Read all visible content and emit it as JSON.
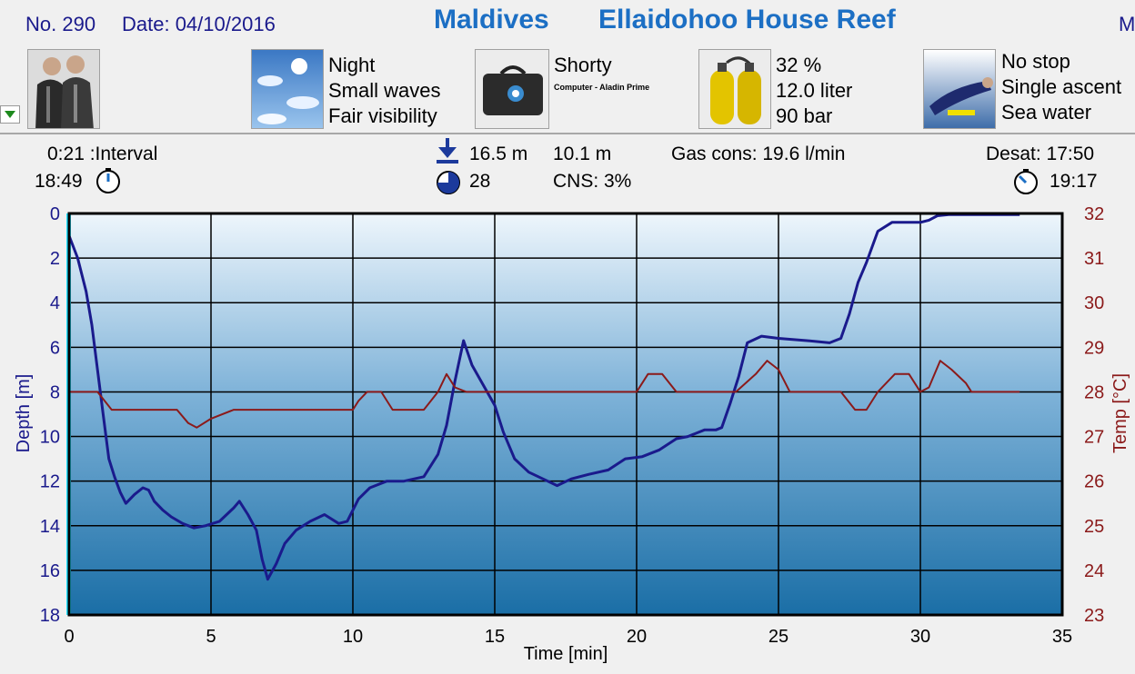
{
  "header": {
    "dive_no": "No. 290",
    "date": "Date: 04/10/2016",
    "country": "Maldives",
    "site": "Ellaidohoo House Reef",
    "edge_text": "M"
  },
  "info": {
    "conditions": [
      "Night",
      "Small waves",
      "Fair visibility"
    ],
    "suit": "Shorty",
    "computer": "Computer - Aladin Prime",
    "tank": [
      "32 %",
      "12.0 liter",
      "90 bar"
    ],
    "dive_type": [
      "No stop",
      "Single ascent",
      "Sea water"
    ]
  },
  "stats": {
    "interval": "0:21  :Interval",
    "start_time": "18:49",
    "max_depth": "16.5 m",
    "avg_depth": "10.1 m",
    "duration": "28",
    "cns": "CNS:  3%",
    "gas_cons": "Gas cons: 19.6 l/min",
    "desat": "Desat: 17:50",
    "end_time": "19:17"
  },
  "icons": [
    "avatar-icon",
    "weather-icon",
    "bag-icon",
    "tank-icon",
    "diver-icon",
    "dropdown-arrow-icon",
    "clock-icon",
    "max-depth-icon",
    "duration-icon"
  ],
  "colors": {
    "depth": "#1a1a8c",
    "temp": "#8b1a1a",
    "title": "#1c6fc4",
    "plot_top": "#eef6fc",
    "plot_bottom": "#1a6ea6"
  },
  "chart_data": {
    "type": "line",
    "xlabel": "Time [min]",
    "ylabel": "Depth [m]",
    "y2label": "Temp [°C]",
    "xlim": [
      0,
      35
    ],
    "ylim": [
      0,
      18
    ],
    "y2lim": [
      23,
      32
    ],
    "x_ticks": [
      "0",
      "5",
      "10",
      "15",
      "20",
      "25",
      "30",
      "35"
    ],
    "y_ticks": [
      "0",
      "2",
      "4",
      "6",
      "8",
      "10",
      "12",
      "14",
      "16",
      "18"
    ],
    "y2_ticks": [
      "32",
      "31",
      "30",
      "29",
      "28",
      "27",
      "26",
      "25",
      "24",
      "23"
    ],
    "grid": true,
    "series": [
      {
        "axis": "left",
        "color": "#1a1a8c",
        "points": [
          [
            0,
            1
          ],
          [
            0.3,
            2
          ],
          [
            0.6,
            3.5
          ],
          [
            0.8,
            5
          ],
          [
            1,
            7
          ],
          [
            1.2,
            9
          ],
          [
            1.4,
            11
          ],
          [
            1.6,
            11.8
          ],
          [
            1.8,
            12.5
          ],
          [
            2,
            13
          ],
          [
            2.3,
            12.6
          ],
          [
            2.6,
            12.3
          ],
          [
            2.8,
            12.4
          ],
          [
            3,
            12.9
          ],
          [
            3.3,
            13.3
          ],
          [
            3.6,
            13.6
          ],
          [
            4,
            13.9
          ],
          [
            4.4,
            14.1
          ],
          [
            4.8,
            14
          ],
          [
            5.3,
            13.8
          ],
          [
            5.8,
            13.2
          ],
          [
            6,
            12.9
          ],
          [
            6.3,
            13.5
          ],
          [
            6.6,
            14.2
          ],
          [
            6.8,
            15.5
          ],
          [
            7,
            16.4
          ],
          [
            7.3,
            15.7
          ],
          [
            7.6,
            14.8
          ],
          [
            8,
            14.2
          ],
          [
            8.5,
            13.8
          ],
          [
            9,
            13.5
          ],
          [
            9.5,
            13.9
          ],
          [
            9.8,
            13.8
          ],
          [
            10.2,
            12.8
          ],
          [
            10.6,
            12.3
          ],
          [
            11.2,
            12
          ],
          [
            11.8,
            12
          ],
          [
            12.5,
            11.8
          ],
          [
            13,
            10.8
          ],
          [
            13.3,
            9.5
          ],
          [
            13.6,
            7.5
          ],
          [
            13.9,
            5.7
          ],
          [
            14.2,
            6.8
          ],
          [
            14.6,
            7.7
          ],
          [
            15,
            8.6
          ],
          [
            15.3,
            9.8
          ],
          [
            15.7,
            11
          ],
          [
            16.2,
            11.6
          ],
          [
            16.7,
            11.9
          ],
          [
            17.2,
            12.2
          ],
          [
            17.7,
            11.9
          ],
          [
            18.3,
            11.7
          ],
          [
            19,
            11.5
          ],
          [
            19.6,
            11
          ],
          [
            20.2,
            10.9
          ],
          [
            20.8,
            10.6
          ],
          [
            21.4,
            10.1
          ],
          [
            21.8,
            10
          ],
          [
            22.4,
            9.7
          ],
          [
            22.8,
            9.7
          ],
          [
            23,
            9.6
          ],
          [
            23.3,
            8.5
          ],
          [
            23.6,
            7.3
          ],
          [
            23.9,
            5.8
          ],
          [
            24.4,
            5.5
          ],
          [
            25,
            5.6
          ],
          [
            26,
            5.7
          ],
          [
            26.8,
            5.8
          ],
          [
            27.2,
            5.6
          ],
          [
            27.5,
            4.5
          ],
          [
            27.8,
            3.1
          ],
          [
            28.1,
            2.2
          ],
          [
            28.5,
            0.8
          ],
          [
            29,
            0.4
          ],
          [
            29.5,
            0.4
          ],
          [
            30,
            0.4
          ],
          [
            30.3,
            0.3
          ],
          [
            30.6,
            0.1
          ],
          [
            31,
            0.05
          ],
          [
            33.5,
            0.05
          ]
        ]
      },
      {
        "axis": "right",
        "color": "#8b1a1a",
        "points": [
          [
            0,
            28
          ],
          [
            1,
            28
          ],
          [
            1.5,
            27.6
          ],
          [
            3,
            27.6
          ],
          [
            3.8,
            27.6
          ],
          [
            4.2,
            27.3
          ],
          [
            4.5,
            27.2
          ],
          [
            5,
            27.4
          ],
          [
            5.8,
            27.6
          ],
          [
            8,
            27.6
          ],
          [
            10,
            27.6
          ],
          [
            10.2,
            27.8
          ],
          [
            10.5,
            28
          ],
          [
            11,
            28
          ],
          [
            11.4,
            27.6
          ],
          [
            12.5,
            27.6
          ],
          [
            13,
            28
          ],
          [
            13.3,
            28.4
          ],
          [
            13.6,
            28.1
          ],
          [
            14,
            28
          ],
          [
            20,
            28
          ],
          [
            20.4,
            28.4
          ],
          [
            20.9,
            28.4
          ],
          [
            21.4,
            28
          ],
          [
            23.5,
            28
          ],
          [
            24.2,
            28.4
          ],
          [
            24.6,
            28.7
          ],
          [
            25,
            28.5
          ],
          [
            25.4,
            28
          ],
          [
            26.8,
            28
          ],
          [
            27.2,
            28
          ],
          [
            27.7,
            27.6
          ],
          [
            28.1,
            27.6
          ],
          [
            28.5,
            28
          ],
          [
            29.1,
            28.4
          ],
          [
            29.6,
            28.4
          ],
          [
            30,
            28
          ],
          [
            30.3,
            28.1
          ],
          [
            30.7,
            28.7
          ],
          [
            31.1,
            28.5
          ],
          [
            31.6,
            28.2
          ],
          [
            31.8,
            28
          ],
          [
            33.5,
            28
          ]
        ]
      }
    ]
  }
}
